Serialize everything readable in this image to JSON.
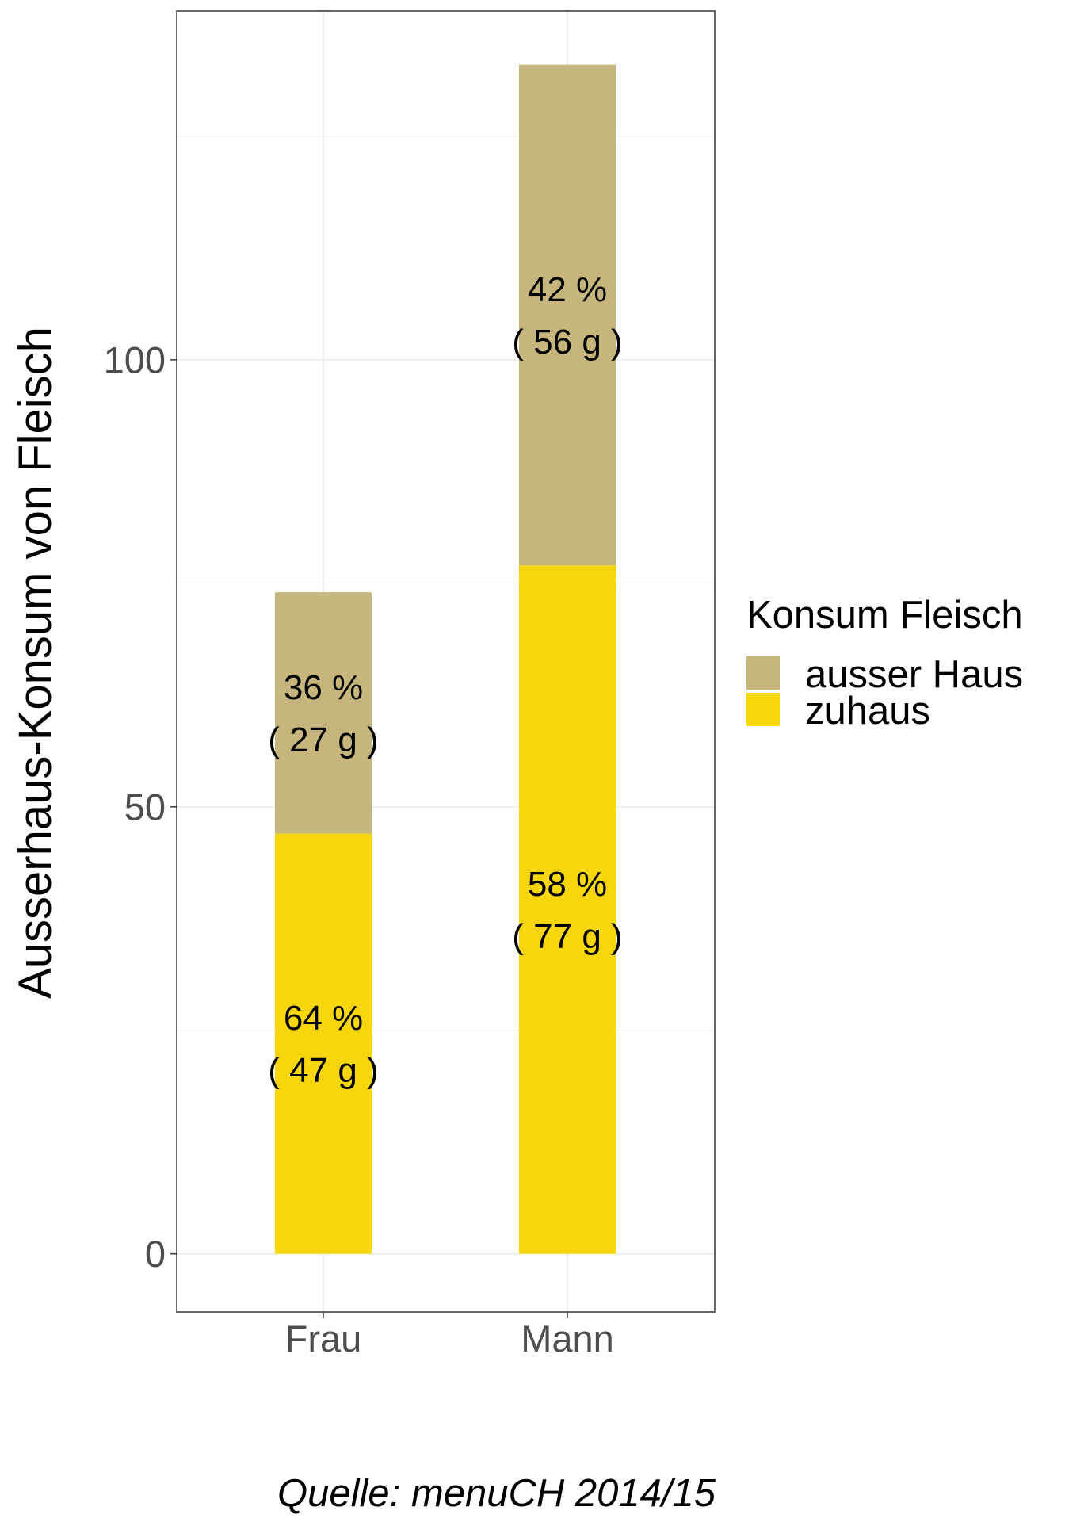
{
  "chart_data": {
    "type": "bar",
    "stacked": true,
    "categories": [
      "Frau",
      "Mann"
    ],
    "series": [
      {
        "name": "zuhaus",
        "values": [
          47,
          77
        ],
        "color": "#F8D60D",
        "labels": [
          [
            "64 %",
            "( 47 g )"
          ],
          [
            "58 %",
            "( 77 g )"
          ]
        ]
      },
      {
        "name": "ausser Haus",
        "values": [
          27,
          56
        ],
        "color": "#C6B67D",
        "labels": [
          [
            "36 %",
            "( 27 g )"
          ],
          [
            "42 %",
            "( 56 g )"
          ]
        ]
      }
    ],
    "ylabel": "Ausserhaus-Konsum von Fleisch",
    "xlabel": "",
    "yticks": [
      0,
      50,
      100
    ],
    "ylim": [
      -6.5,
      139
    ],
    "legend_title": "Konsum Fleisch",
    "legend_placement": "right",
    "grid": true,
    "caption": "Quelle: menuCH 2014/15"
  }
}
